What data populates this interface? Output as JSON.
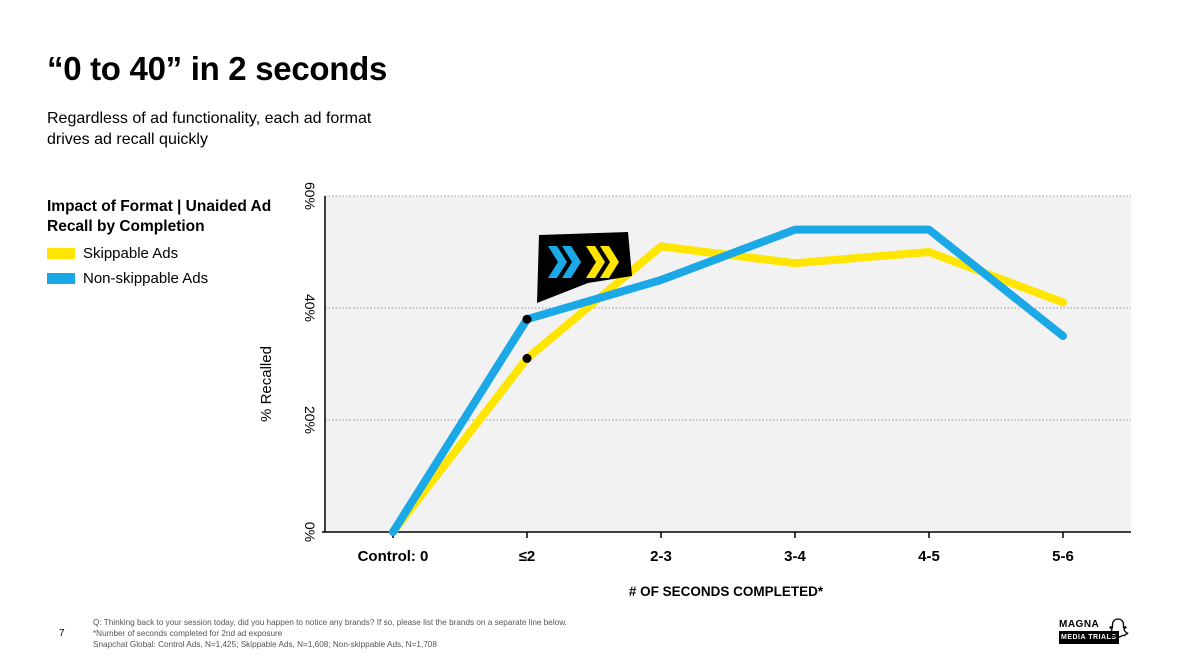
{
  "header": {
    "title": "“0 to 40” in 2 seconds",
    "subtitle": "Regardless of ad functionality, each ad format drives ad recall quickly"
  },
  "legend": {
    "title": "Impact of Format | Unaided Ad Recall by Completion",
    "items": [
      {
        "label": "Skippable Ads",
        "color": "#FFE500"
      },
      {
        "label": "Non-skippable Ads",
        "color": "#1BA8E6"
      }
    ]
  },
  "chart_data": {
    "type": "line",
    "categories": [
      "Control: 0",
      "≤2",
      "2-3",
      "3-4",
      "4-5",
      "5-6"
    ],
    "series": [
      {
        "name": "Skippable Ads",
        "color": "#FFE500",
        "values": [
          0,
          31,
          51,
          48,
          50,
          41
        ]
      },
      {
        "name": "Non-skippable Ads",
        "color": "#1BA8E6",
        "values": [
          0,
          38,
          45,
          54,
          54,
          35
        ]
      }
    ],
    "ylim": [
      0,
      60
    ],
    "yticks": [
      "0%",
      "20%",
      "40%",
      "60%"
    ],
    "ytick_values": [
      0,
      20,
      40,
      60
    ],
    "ylabel": "% Recalled",
    "xlabel": "# OF SECONDS COMPLETED*",
    "grid": "horizontal dotted",
    "plot_background": "#F2F2F2",
    "callout_icon": "fast-forward-chevrons-icon"
  },
  "footer": {
    "page_number": "7",
    "notes": [
      "Q: Thinking back to your session today, did you happen to notice any brands? If so, please list the brands on a separate line below.",
      "*Number of seconds completed for 2nd ad exposure",
      "Snapchat Global: Control Ads, N=1,425; Skippable Ads, N=1,608; Non-skippable Ads, N=1,708"
    ],
    "logo_line1": "MAGNA",
    "logo_line2": "MEDIA TRIALS",
    "partner_icon": "snapchat-ghost-icon"
  }
}
